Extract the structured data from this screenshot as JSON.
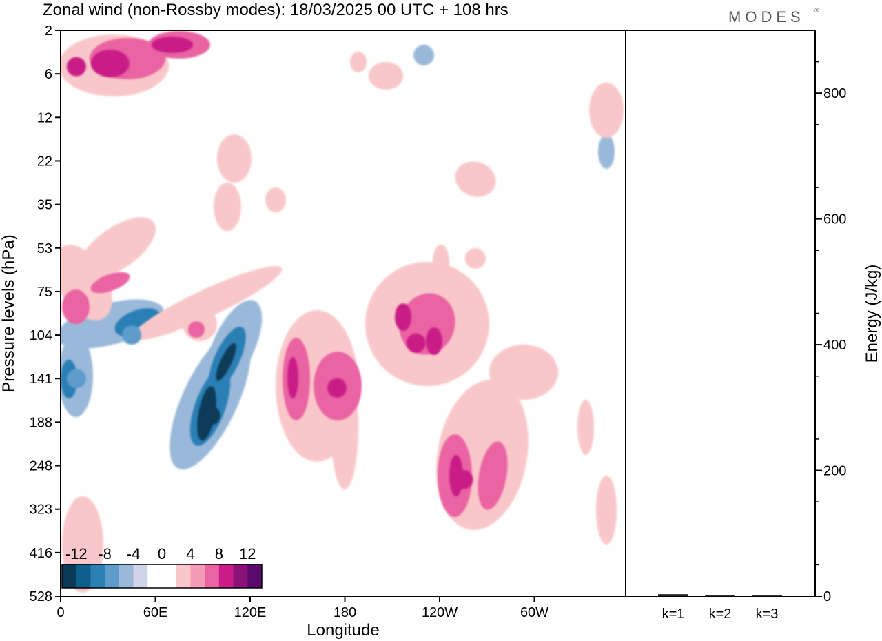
{
  "title": "Zonal wind (non-Rossby modes):  18/03/2025  00 UTC  + 108 hrs",
  "brand": "MODES",
  "brand_mark": "®",
  "chart_data": [
    {
      "type": "heatmap",
      "title": "Zonal wind (non-Rossby modes):  18/03/2025  00 UTC  + 108 hrs",
      "xlabel": "Longitude",
      "ylabel": "Pressure levels (hPa)",
      "x_ticks": [
        "0",
        "60E",
        "120E",
        "180",
        "120W",
        "60W"
      ],
      "y_ticks": [
        "2",
        "6",
        "12",
        "22",
        "35",
        "53",
        "75",
        "104",
        "141",
        "188",
        "248",
        "323",
        "416",
        "528"
      ],
      "colorbar": {
        "labels": [
          "-12",
          "-8",
          "-4",
          "0",
          "4",
          "8",
          "12"
        ],
        "colors": [
          "#0a3a58",
          "#0f5f8c",
          "#2a7fb5",
          "#5e9ccb",
          "#9ab9da",
          "#cfd4e8",
          "#ffffff",
          "#ffffff",
          "#f9c7c9",
          "#f59bb7",
          "#ea63a3",
          "#c91c87",
          "#8b1279",
          "#5a0a6e"
        ]
      },
      "features": [
        {
          "kind": "negative",
          "description": "strong easterly core",
          "lon": 95,
          "pressure": 180,
          "level": -14
        },
        {
          "kind": "negative",
          "description": "easterly band",
          "lon": 45,
          "pressure": 104,
          "level": -8
        },
        {
          "kind": "negative",
          "description": "easterly band",
          "lon": 10,
          "pressure": 141,
          "level": -8
        },
        {
          "kind": "positive",
          "description": "westerly maximum",
          "lon": 10,
          "pressure": 5,
          "level": 9
        },
        {
          "kind": "positive",
          "description": "westerly maximum",
          "lon": 175,
          "pressure": 150,
          "level": 8
        },
        {
          "kind": "positive",
          "description": "westerly maximum",
          "lon": 225,
          "pressure": 110,
          "level": 8
        },
        {
          "kind": "positive",
          "description": "westerly maximum",
          "lon": 255,
          "pressure": 270,
          "level": 8
        }
      ]
    },
    {
      "type": "bar",
      "categories": [
        "k=1",
        "k=2",
        "k=3"
      ],
      "values": [
        2,
        1,
        1
      ],
      "ylabel": "Energy (J/kg)",
      "ylim": [
        0,
        900
      ],
      "y_ticks": [
        0,
        200,
        400,
        600,
        800
      ]
    }
  ]
}
